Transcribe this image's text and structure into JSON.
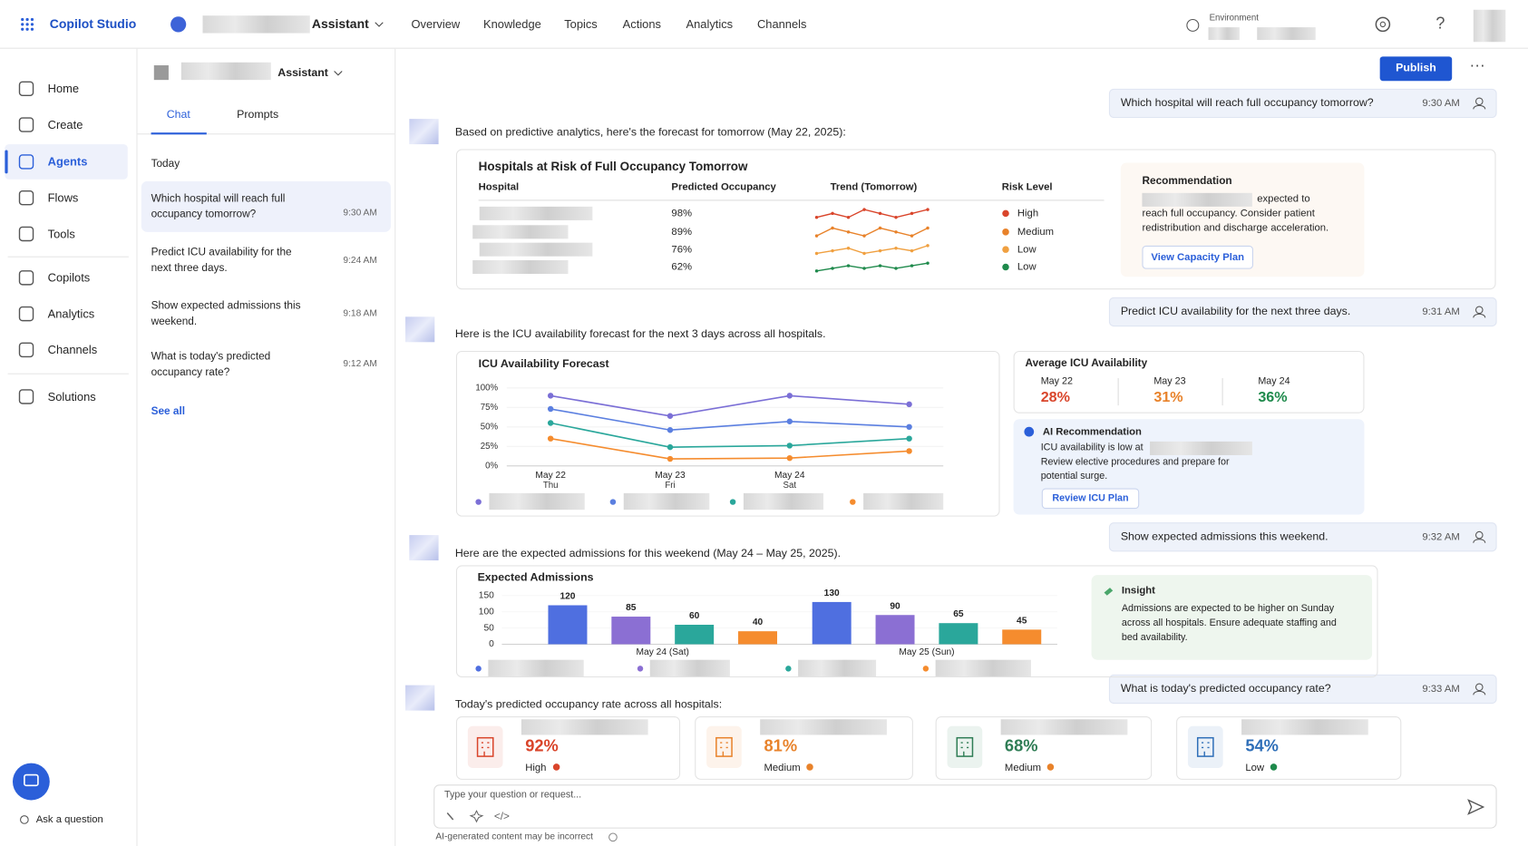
{
  "app": {
    "name": "Copilot Studio",
    "agent": "Assistant",
    "tabs": [
      "Overview",
      "Knowledge",
      "Topics",
      "Actions",
      "Analytics",
      "Channels"
    ],
    "environment": "Environment",
    "publish": "Publish"
  },
  "sidebar": {
    "items": [
      "Home",
      "Create",
      "Agents",
      "Flows",
      "Tools",
      "Copilots",
      "Analytics",
      "Channels",
      "Solutions"
    ],
    "active": "Agents",
    "ask": "Ask a question"
  },
  "history": {
    "agent": "Assistant",
    "tabs": [
      "Chat",
      "Prompts"
    ],
    "section": "Today",
    "items": [
      {
        "text": "Which hospital will reach full occupancy tomorrow?",
        "time": "9:30 AM"
      },
      {
        "text": "Predict ICU availability for the next three days.",
        "time": "9:24 AM"
      },
      {
        "text": "Show expected admissions this weekend.",
        "time": "9:18 AM"
      },
      {
        "text": "What is today's predicted occupancy rate?",
        "time": "9:12 AM"
      }
    ],
    "see_all": "See all"
  },
  "messages": [
    {
      "text": "Which hospital will reach full occupancy tomorrow?",
      "time": "9:30 AM"
    },
    {
      "text": "Predict ICU availability for the next three days.",
      "time": "9:31 AM"
    },
    {
      "text": "Show expected admissions this weekend.",
      "time": "9:32 AM"
    },
    {
      "text": "What is today's predicted occupancy rate?",
      "time": "9:33 AM"
    }
  ],
  "replies": [
    "Based on predictive analytics, here's the forecast for tomorrow (May 22, 2025):",
    "Here is the ICU availability forecast for the next 3 days across all hospitals.",
    "Here are the expected admissions for this weekend (May 24 – May 25, 2025).",
    "Today's predicted occupancy rate across all hospitals:"
  ],
  "risk_table": {
    "title": "Hospitals at Risk of Full Occupancy Tomorrow",
    "headers": [
      "Hospital",
      "Predicted Occupancy",
      "Trend (Tomorrow)",
      "Risk Level"
    ],
    "values": [
      98,
      89,
      76,
      62
    ],
    "value_labels": [
      "98%",
      "89%",
      "76%",
      "62%"
    ],
    "risk": [
      "High",
      "Medium",
      "Low",
      "Low"
    ],
    "risk_colors": [
      "#d9452b",
      "#e8822a",
      "#f0a040",
      "#1f8a4c"
    ],
    "trends": [
      [
        96,
        97,
        96,
        98,
        97,
        96,
        97,
        98
      ],
      [
        88,
        90,
        89,
        88,
        90,
        89,
        88,
        90
      ],
      [
        75,
        76,
        77,
        75,
        76,
        77,
        76,
        78
      ],
      [
        60,
        61,
        62,
        61,
        62,
        61,
        62,
        63
      ]
    ]
  },
  "recommendation": {
    "title": "Recommendation",
    "text": "expected to reach full occupancy. Consider patient redistribution and discharge acceleration.",
    "button": "View Capacity Plan"
  },
  "chart_data": [
    {
      "type": "line",
      "title": "ICU Availability Forecast",
      "categories": [
        "May 22",
        "May 23",
        "May 24",
        null
      ],
      "sublabels": [
        "Thu",
        "Fri",
        "Sat",
        null
      ],
      "series": [
        {
          "color": "#7b6fd6",
          "values": [
            90,
            64,
            90,
            79
          ]
        },
        {
          "color": "#5b7fe0",
          "values": [
            73,
            46,
            57,
            50
          ]
        },
        {
          "color": "#2aa79b",
          "values": [
            55,
            24,
            26,
            35
          ]
        },
        {
          "color": "#f58c2e",
          "values": [
            35,
            9,
            10,
            19
          ]
        }
      ],
      "ylim": [
        0,
        100
      ],
      "yticks": [
        {
          "value": 0,
          "label": "0%"
        },
        {
          "value": 25,
          "label": "25%"
        },
        {
          "value": 50,
          "label": "50%"
        },
        {
          "value": 75,
          "label": "75%"
        },
        {
          "value": 100,
          "label": "100%"
        }
      ]
    },
    {
      "type": "bar",
      "title": "Expected Admissions",
      "categories": [
        "May 24 (Sat)",
        "May 25 (Sun)"
      ],
      "series": [
        {
          "color": "#4f6fe0",
          "values": [
            120,
            130
          ]
        },
        {
          "color": "#8b6fd3",
          "values": [
            85,
            90
          ]
        },
        {
          "color": "#2aa79b",
          "values": [
            60,
            65
          ]
        },
        {
          "color": "#f58c2e",
          "values": [
            40,
            45
          ]
        }
      ],
      "ylim": [
        0,
        150
      ],
      "yticks": [
        0,
        50,
        100,
        150
      ]
    }
  ],
  "icu_average": {
    "title": "Average ICU Availability",
    "dates": [
      "May 22",
      "May 23",
      "May 24"
    ],
    "values": [
      28,
      31,
      36
    ],
    "value_labels": [
      "28%",
      "31%",
      "36%"
    ],
    "colors": [
      "#d9452b",
      "#e8822a",
      "#1f8a4c"
    ]
  },
  "ai_recommendation": {
    "title": "AI Recommendation",
    "text_a": "ICU availability is low at",
    "text_b": "Review elective procedures and prepare for potential surge.",
    "button": "Review ICU Plan"
  },
  "insight": {
    "title": "Insight",
    "text": "Admissions are expected to be higher on Sunday across all hospitals. Ensure adequate staffing and bed availability."
  },
  "occupancy_cards": {
    "values": [
      92,
      81,
      68,
      54
    ],
    "value_labels": [
      "92%",
      "81%",
      "68%",
      "54%"
    ],
    "levels": [
      "High",
      "Medium",
      "Medium",
      "Low"
    ],
    "colors": [
      "#d9452b",
      "#e8822a",
      "#2f7d55",
      "#2f6fb8"
    ],
    "dot_colors": [
      "#d9452b",
      "#e8822a",
      "#e8822a",
      "#1f8a4c"
    ]
  },
  "input": {
    "placeholder": "Type your question or request...",
    "disclaimer": "AI-generated content may be incorrect"
  }
}
